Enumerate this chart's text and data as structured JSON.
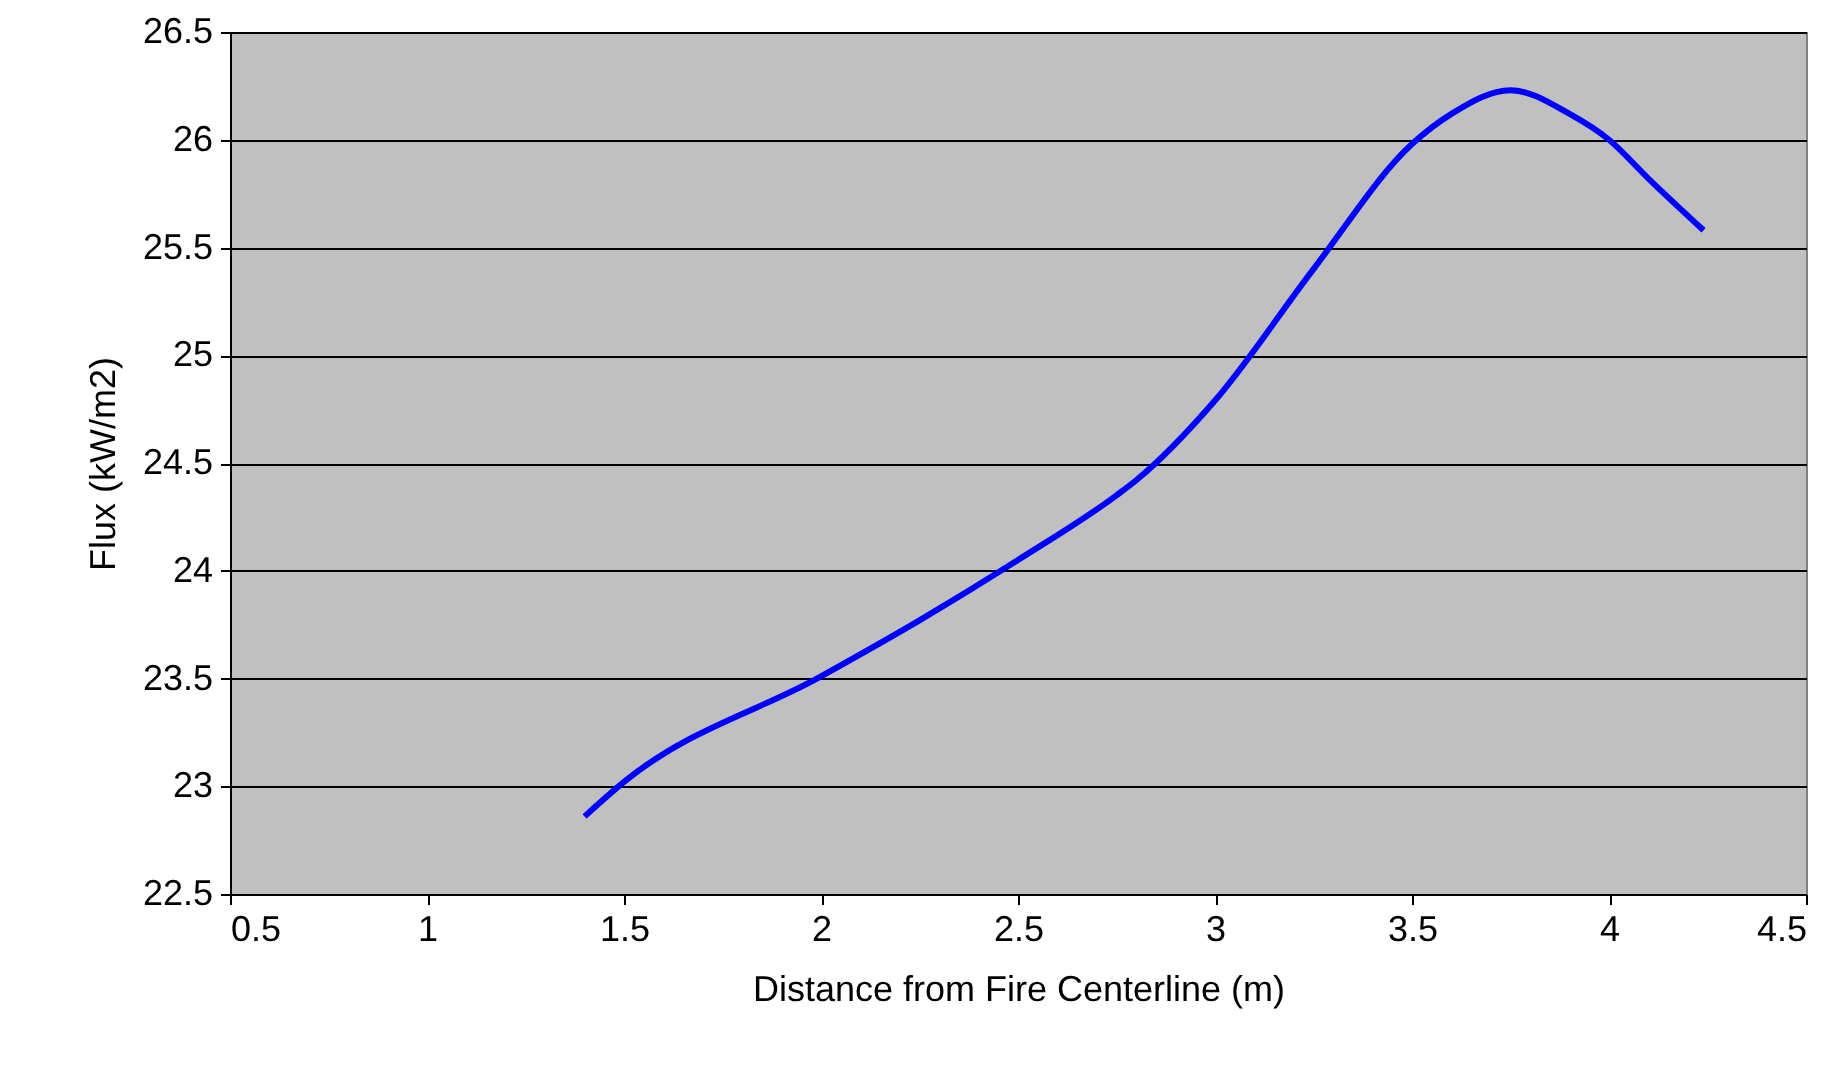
{
  "chart_data": {
    "type": "line",
    "xlabel": "Distance from Fire Centerline (m)",
    "ylabel": "Flux (kW/m2)",
    "x": [
      1.4,
      1.5,
      2.0,
      2.25,
      2.5,
      2.75,
      2.8,
      3.0,
      3.25,
      3.5,
      3.6,
      3.75,
      3.9,
      4.0,
      4.1,
      4.24
    ],
    "series": [
      {
        "color": "#0000ff",
        "values": [
          22.86,
          23.02,
          23.51,
          23.77,
          24.05,
          24.35,
          24.42,
          24.79,
          25.4,
          25.98,
          26.12,
          26.23,
          26.12,
          26.0,
          25.82,
          25.58
        ]
      }
    ],
    "xlim": [
      0.5,
      4.5
    ],
    "xticks": [
      0.5,
      1,
      1.5,
      2,
      2.5,
      3,
      3.5,
      4,
      4.5
    ],
    "ylim": [
      22.5,
      26.5
    ],
    "yticks": [
      22.5,
      23,
      23.5,
      24,
      24.5,
      25,
      25.5,
      26,
      26.5
    ],
    "grid": "y",
    "marker": "none",
    "line_style": "solid"
  }
}
